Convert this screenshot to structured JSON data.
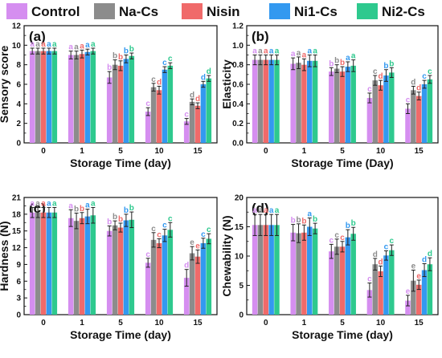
{
  "legend": {
    "items": [
      {
        "name": "Control",
        "color": "#d58ef0"
      },
      {
        "name": "Na-Cs",
        "color": "#8c8c8c"
      },
      {
        "name": "Nisin",
        "color": "#f06a6a"
      },
      {
        "name": "Ni1-Cs",
        "color": "#3399f0"
      },
      {
        "name": "Ni2-Cs",
        "color": "#2ec98e"
      }
    ]
  },
  "chart_data": [
    {
      "type": "bar",
      "panel_label": "(a)",
      "title": "",
      "xlabel": "Storage Time (day)",
      "ylabel": "Sensory score",
      "categories": [
        "0",
        "1",
        "5",
        "10",
        "15"
      ],
      "ylim": [
        0,
        12
      ],
      "yticks": [
        "0",
        "2",
        "4",
        "6",
        "8",
        "10",
        "12"
      ],
      "series": [
        {
          "name": "Control",
          "values": [
            9.4,
            9.0,
            6.7,
            3.2,
            2.2
          ],
          "errors": [
            0.3,
            0.4,
            0.6,
            0.4,
            0.3
          ],
          "labels": [
            "a",
            "a",
            "b",
            "c",
            "c"
          ]
        },
        {
          "name": "Na-Cs",
          "values": [
            9.4,
            9.0,
            8.0,
            5.7,
            4.2
          ],
          "errors": [
            0.3,
            0.4,
            0.5,
            0.4,
            0.3
          ],
          "labels": [
            "a",
            "a",
            "b",
            "c",
            "d"
          ]
        },
        {
          "name": "Nisin",
          "values": [
            9.4,
            9.1,
            7.9,
            5.4,
            3.8
          ],
          "errors": [
            0.3,
            0.4,
            0.5,
            0.4,
            0.3
          ],
          "labels": [
            "a",
            "a",
            "b",
            "d",
            "d"
          ]
        },
        {
          "name": "Ni1-Cs",
          "values": [
            9.4,
            9.3,
            8.6,
            7.5,
            6.0
          ],
          "errors": [
            0.3,
            0.3,
            0.4,
            0.3,
            0.3
          ],
          "labels": [
            "a",
            "a",
            "b",
            "c",
            "d"
          ]
        },
        {
          "name": "Ni2-Cs",
          "values": [
            9.4,
            9.4,
            8.9,
            7.9,
            6.6
          ],
          "errors": [
            0.3,
            0.3,
            0.3,
            0.3,
            0.3
          ],
          "labels": [
            "a",
            "a",
            "b",
            "c",
            "d"
          ]
        }
      ]
    },
    {
      "type": "bar",
      "panel_label": "(b)",
      "title": "",
      "xlabel": "Storage Time (Day)",
      "ylabel": "Elasticity",
      "categories": [
        "0",
        "1",
        "5",
        "10",
        "15"
      ],
      "ylim": [
        0,
        1.2
      ],
      "yticks": [
        "0.0",
        "0.2",
        "0.4",
        "0.6",
        "0.8",
        "1.0",
        "1.2"
      ],
      "series": [
        {
          "name": "Control",
          "values": [
            0.85,
            0.81,
            0.73,
            0.46,
            0.35
          ],
          "errors": [
            0.05,
            0.06,
            0.04,
            0.05,
            0.05
          ],
          "labels": [
            "a",
            "a",
            "b",
            "c",
            "c"
          ]
        },
        {
          "name": "Na-Cs",
          "values": [
            0.85,
            0.82,
            0.76,
            0.64,
            0.54
          ],
          "errors": [
            0.05,
            0.06,
            0.04,
            0.05,
            0.04
          ],
          "labels": [
            "a",
            "a",
            "b",
            "c",
            "d"
          ]
        },
        {
          "name": "Nisin",
          "values": [
            0.85,
            0.8,
            0.73,
            0.59,
            0.48
          ],
          "errors": [
            0.05,
            0.06,
            0.05,
            0.05,
            0.04
          ],
          "labels": [
            "a",
            "a",
            "b",
            "d",
            "d"
          ]
        },
        {
          "name": "Ni1-Cs",
          "values": [
            0.85,
            0.84,
            0.78,
            0.69,
            0.6
          ],
          "errors": [
            0.05,
            0.06,
            0.05,
            0.06,
            0.04
          ],
          "labels": [
            "a",
            "a",
            "a",
            "b",
            "c"
          ]
        },
        {
          "name": "Ni2-Cs",
          "values": [
            0.85,
            0.84,
            0.79,
            0.72,
            0.65
          ],
          "errors": [
            0.05,
            0.06,
            0.06,
            0.05,
            0.04
          ],
          "labels": [
            "a",
            "a",
            "a",
            "b",
            "c"
          ]
        }
      ]
    },
    {
      "type": "bar",
      "panel_label": "(c)",
      "title": "",
      "xlabel": "Storage Time (day)",
      "ylabel": "Hardness (N)",
      "categories": [
        "0",
        "1",
        "5",
        "10",
        "15"
      ],
      "ylim": [
        0,
        21
      ],
      "yticks": [
        "0",
        "3",
        "6",
        "9",
        "12",
        "15",
        "18",
        "21"
      ],
      "series": [
        {
          "name": "Control",
          "values": [
            18.3,
            17.3,
            15.0,
            9.3,
            6.6
          ],
          "errors": [
            0.9,
            1.5,
            0.9,
            0.8,
            1.5
          ],
          "labels": [
            "a",
            "a",
            "b",
            "c",
            "d"
          ]
        },
        {
          "name": "Na-Cs",
          "values": [
            18.3,
            16.8,
            16.0,
            13.4,
            11.0
          ],
          "errors": [
            0.9,
            1.4,
            0.8,
            1.3,
            1.2
          ],
          "labels": [
            "a",
            "b",
            "b",
            "c",
            "e"
          ]
        },
        {
          "name": "Nisin",
          "values": [
            18.3,
            17.3,
            15.6,
            12.8,
            10.4
          ],
          "errors": [
            0.9,
            1.0,
            0.8,
            0.8,
            1.2
          ],
          "labels": [
            "a",
            "b",
            "b",
            "c",
            "e"
          ]
        },
        {
          "name": "Ni1-Cs",
          "values": [
            18.3,
            17.6,
            16.9,
            14.2,
            12.8
          ],
          "errors": [
            0.9,
            1.3,
            1.1,
            1.1,
            0.9
          ],
          "labels": [
            "a",
            "a",
            "b",
            "c",
            "c"
          ]
        },
        {
          "name": "Ni2-Cs",
          "values": [
            18.3,
            17.8,
            17.0,
            15.2,
            13.6
          ],
          "errors": [
            0.9,
            1.4,
            1.4,
            1.3,
            0.9
          ],
          "labels": [
            "a",
            "a",
            "b",
            "c",
            "c"
          ]
        }
      ]
    },
    {
      "type": "bar",
      "panel_label": "(d)",
      "title": "",
      "xlabel": "Storage Time (day)",
      "ylabel": "Chewability (N)",
      "categories": [
        "0",
        "1",
        "5",
        "10",
        "15"
      ],
      "ylim": [
        0,
        20
      ],
      "yticks": [
        "0",
        "5",
        "10",
        "15",
        "20"
      ],
      "series": [
        {
          "name": "Control",
          "values": [
            15.3,
            14.0,
            10.8,
            4.2,
            2.4
          ],
          "errors": [
            1.8,
            1.4,
            1.2,
            1.2,
            0.9
          ],
          "labels": [
            "a",
            "b",
            "c",
            "c",
            "e"
          ]
        },
        {
          "name": "Na-Cs",
          "values": [
            15.3,
            13.9,
            11.6,
            8.6,
            5.8
          ],
          "errors": [
            1.8,
            1.6,
            1.3,
            1.0,
            1.8
          ],
          "labels": [
            "a",
            "b",
            "c",
            "d",
            "e"
          ]
        },
        {
          "name": "Nisin",
          "values": [
            15.3,
            14.0,
            11.6,
            7.4,
            5.1
          ],
          "errors": [
            1.8,
            1.3,
            0.9,
            0.9,
            0.8
          ],
          "labels": [
            "a",
            "b",
            "c",
            "d",
            "e"
          ]
        },
        {
          "name": "Ni1-Cs",
          "values": [
            15.3,
            15.0,
            13.2,
            10.1,
            7.6
          ],
          "errors": [
            1.8,
            1.5,
            1.3,
            0.8,
            1.1
          ],
          "labels": [
            "a",
            "a",
            "b",
            "c",
            "d"
          ]
        },
        {
          "name": "Ni2-Cs",
          "values": [
            15.3,
            14.7,
            13.8,
            11.0,
            8.6
          ],
          "errors": [
            1.8,
            0.9,
            1.1,
            0.9,
            1.1
          ],
          "labels": [
            "a",
            "b",
            "b",
            "c",
            "d"
          ]
        }
      ]
    }
  ]
}
